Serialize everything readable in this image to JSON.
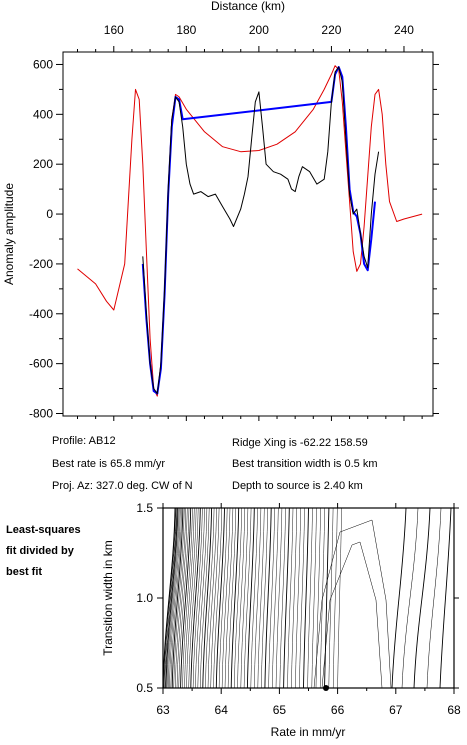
{
  "chart_data": [
    {
      "type": "line",
      "xlabel": "Distance (km)",
      "ylabel": "Anomaly amplitude",
      "xlim": [
        146,
        248
      ],
      "ylim": [
        -810,
        650
      ],
      "x_ticks": [
        160,
        180,
        200,
        220,
        240
      ],
      "y_ticks": [
        -800,
        -600,
        -400,
        -200,
        0,
        200,
        400,
        600
      ],
      "series": [
        {
          "color": "#e00000",
          "style": "line",
          "x": [
            150,
            155,
            158,
            160,
            163,
            165,
            166,
            167,
            168,
            169,
            170,
            171,
            172,
            173,
            174,
            175,
            176,
            177,
            178,
            180,
            185,
            190,
            195,
            200,
            205,
            210,
            215,
            218,
            220,
            221,
            222,
            223,
            224,
            225,
            226,
            227,
            228,
            229,
            230,
            231,
            232,
            233,
            234,
            235,
            236,
            238,
            240,
            245
          ],
          "y": [
            -220,
            -280,
            -350,
            -385,
            -200,
            300,
            500,
            460,
            200,
            -150,
            -500,
            -700,
            -730,
            -600,
            -300,
            100,
            380,
            480,
            470,
            420,
            330,
            270,
            250,
            255,
            280,
            330,
            420,
            500,
            560,
            595,
            580,
            450,
            250,
            50,
            -150,
            -230,
            -200,
            -50,
            150,
            350,
            480,
            500,
            400,
            200,
            50,
            -30,
            -20,
            0
          ]
        },
        {
          "color": "#0000ff",
          "style": "line",
          "x": [
            168,
            169,
            170,
            171,
            172,
            173,
            174,
            175,
            176,
            177,
            178,
            179,
            220,
            221,
            222,
            223,
            224,
            225,
            226,
            227,
            228,
            229,
            230,
            231,
            232
          ],
          "y": [
            -200,
            -420,
            -600,
            -710,
            -720,
            -620,
            -320,
            80,
            350,
            470,
            460,
            380,
            450,
            560,
            590,
            550,
            350,
            100,
            10,
            -10,
            -80,
            -200,
            -225,
            -100,
            50
          ]
        },
        {
          "color": "#000000",
          "style": "line",
          "x": [
            168,
            169,
            170,
            171,
            172,
            173,
            174,
            175,
            176,
            177,
            178,
            179,
            180,
            181,
            182,
            184,
            186,
            188,
            190,
            192,
            193,
            195,
            196,
            197,
            198,
            199,
            200,
            201,
            202,
            204,
            206,
            208,
            209,
            210,
            211,
            212,
            214,
            216,
            218,
            219,
            220,
            221,
            222,
            223,
            224,
            225,
            226,
            227,
            228,
            229,
            230,
            231,
            232,
            233
          ],
          "y": [
            -170,
            -400,
            -600,
            -700,
            -720,
            -600,
            -300,
            100,
            380,
            470,
            450,
            350,
            200,
            120,
            80,
            90,
            70,
            80,
            30,
            -20,
            -50,
            20,
            80,
            150,
            300,
            450,
            490,
            350,
            200,
            170,
            160,
            140,
            100,
            90,
            150,
            190,
            170,
            120,
            140,
            250,
            450,
            570,
            590,
            530,
            300,
            80,
            0,
            20,
            -80,
            -170,
            -215,
            0,
            160,
            250
          ]
        }
      ]
    },
    {
      "type": "contour",
      "xlabel": "Rate in mm/yr",
      "ylabel": "Transition width in km",
      "xlim": [
        63,
        68
      ],
      "ylim": [
        0.5,
        1.5
      ],
      "x_ticks": [
        63,
        64,
        65,
        66,
        67,
        68
      ],
      "y_ticks": [
        0.5,
        1.0,
        1.5
      ],
      "best_fit": {
        "rate": 65.8,
        "width": 0.5
      }
    }
  ],
  "info": {
    "profile": "Profile: AB12",
    "best_rate": "Best rate is 65.8 mm/yr",
    "proj_az": "Proj. Az: 327.0 deg. CW of N",
    "ridge_xing": "Ridge Xing is -62.22 158.59",
    "best_width": "Best transition width is 0.5 km",
    "depth": "Depth to source is   2.40 km"
  },
  "side_note": [
    "Least-squares",
    "fit divided by",
    "best fit"
  ]
}
